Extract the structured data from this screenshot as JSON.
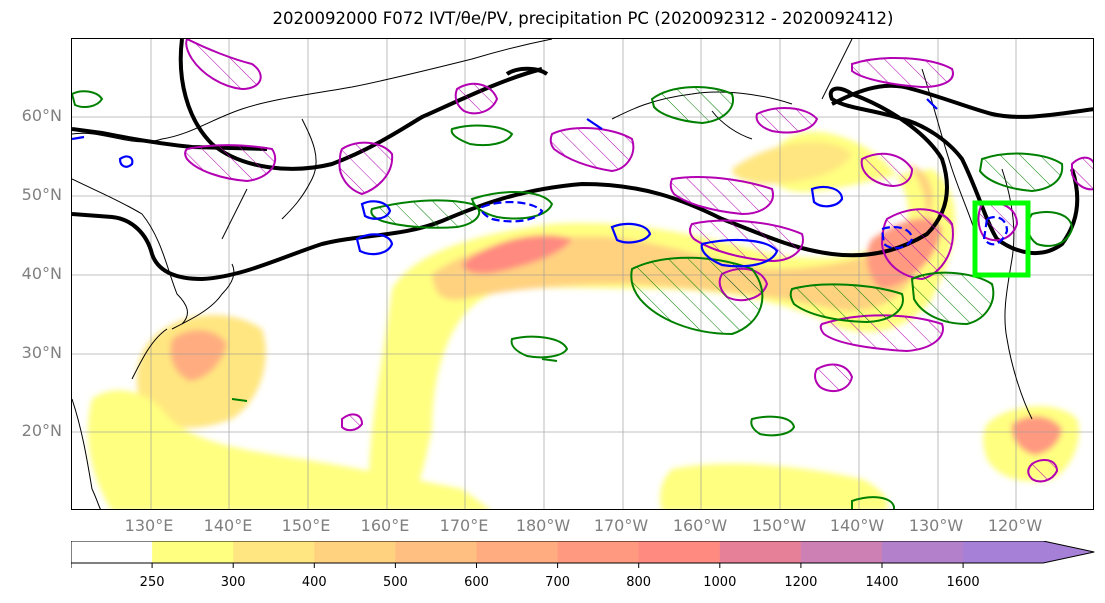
{
  "title": "2020092000 F072 IVT/θe/PV, precipitation PC (2020092312 - 2020092412)",
  "map": {
    "lat_labels": [
      "60°N",
      "50°N",
      "40°N",
      "30°N",
      "20°N"
    ],
    "lon_labels": [
      "130°E",
      "140°E",
      "150°E",
      "160°E",
      "170°E",
      "180°W",
      "170°W",
      "160°W",
      "150°W",
      "140°W",
      "130°W",
      "120°W"
    ],
    "extent": {
      "lon_min": 120,
      "lon_max": 250,
      "lat_min": 10,
      "lat_max": 70
    },
    "highlight_box": {
      "lon_min": 233,
      "lon_max": 240,
      "lat_min": 40,
      "lat_max": 49,
      "color": "#00ff00"
    },
    "contour_colors": {
      "theta_e": "#000000",
      "pv_hatched": "#b300b3",
      "precip_pc_positive": "#008000",
      "precip_pc_negative": "#0000ff"
    }
  },
  "colorbar": {
    "levels": [
      "250",
      "300",
      "400",
      "500",
      "600",
      "700",
      "800",
      "1000",
      "1200",
      "1400",
      "1600"
    ],
    "colors": [
      "#ffffff",
      "#ffff80",
      "#ffe680",
      "#ffd280",
      "#ffbf80",
      "#ffad80",
      "#ff9a80",
      "#ff8a80",
      "#e68099",
      "#cc80b3",
      "#b380cc",
      "#a680d6"
    ]
  }
}
